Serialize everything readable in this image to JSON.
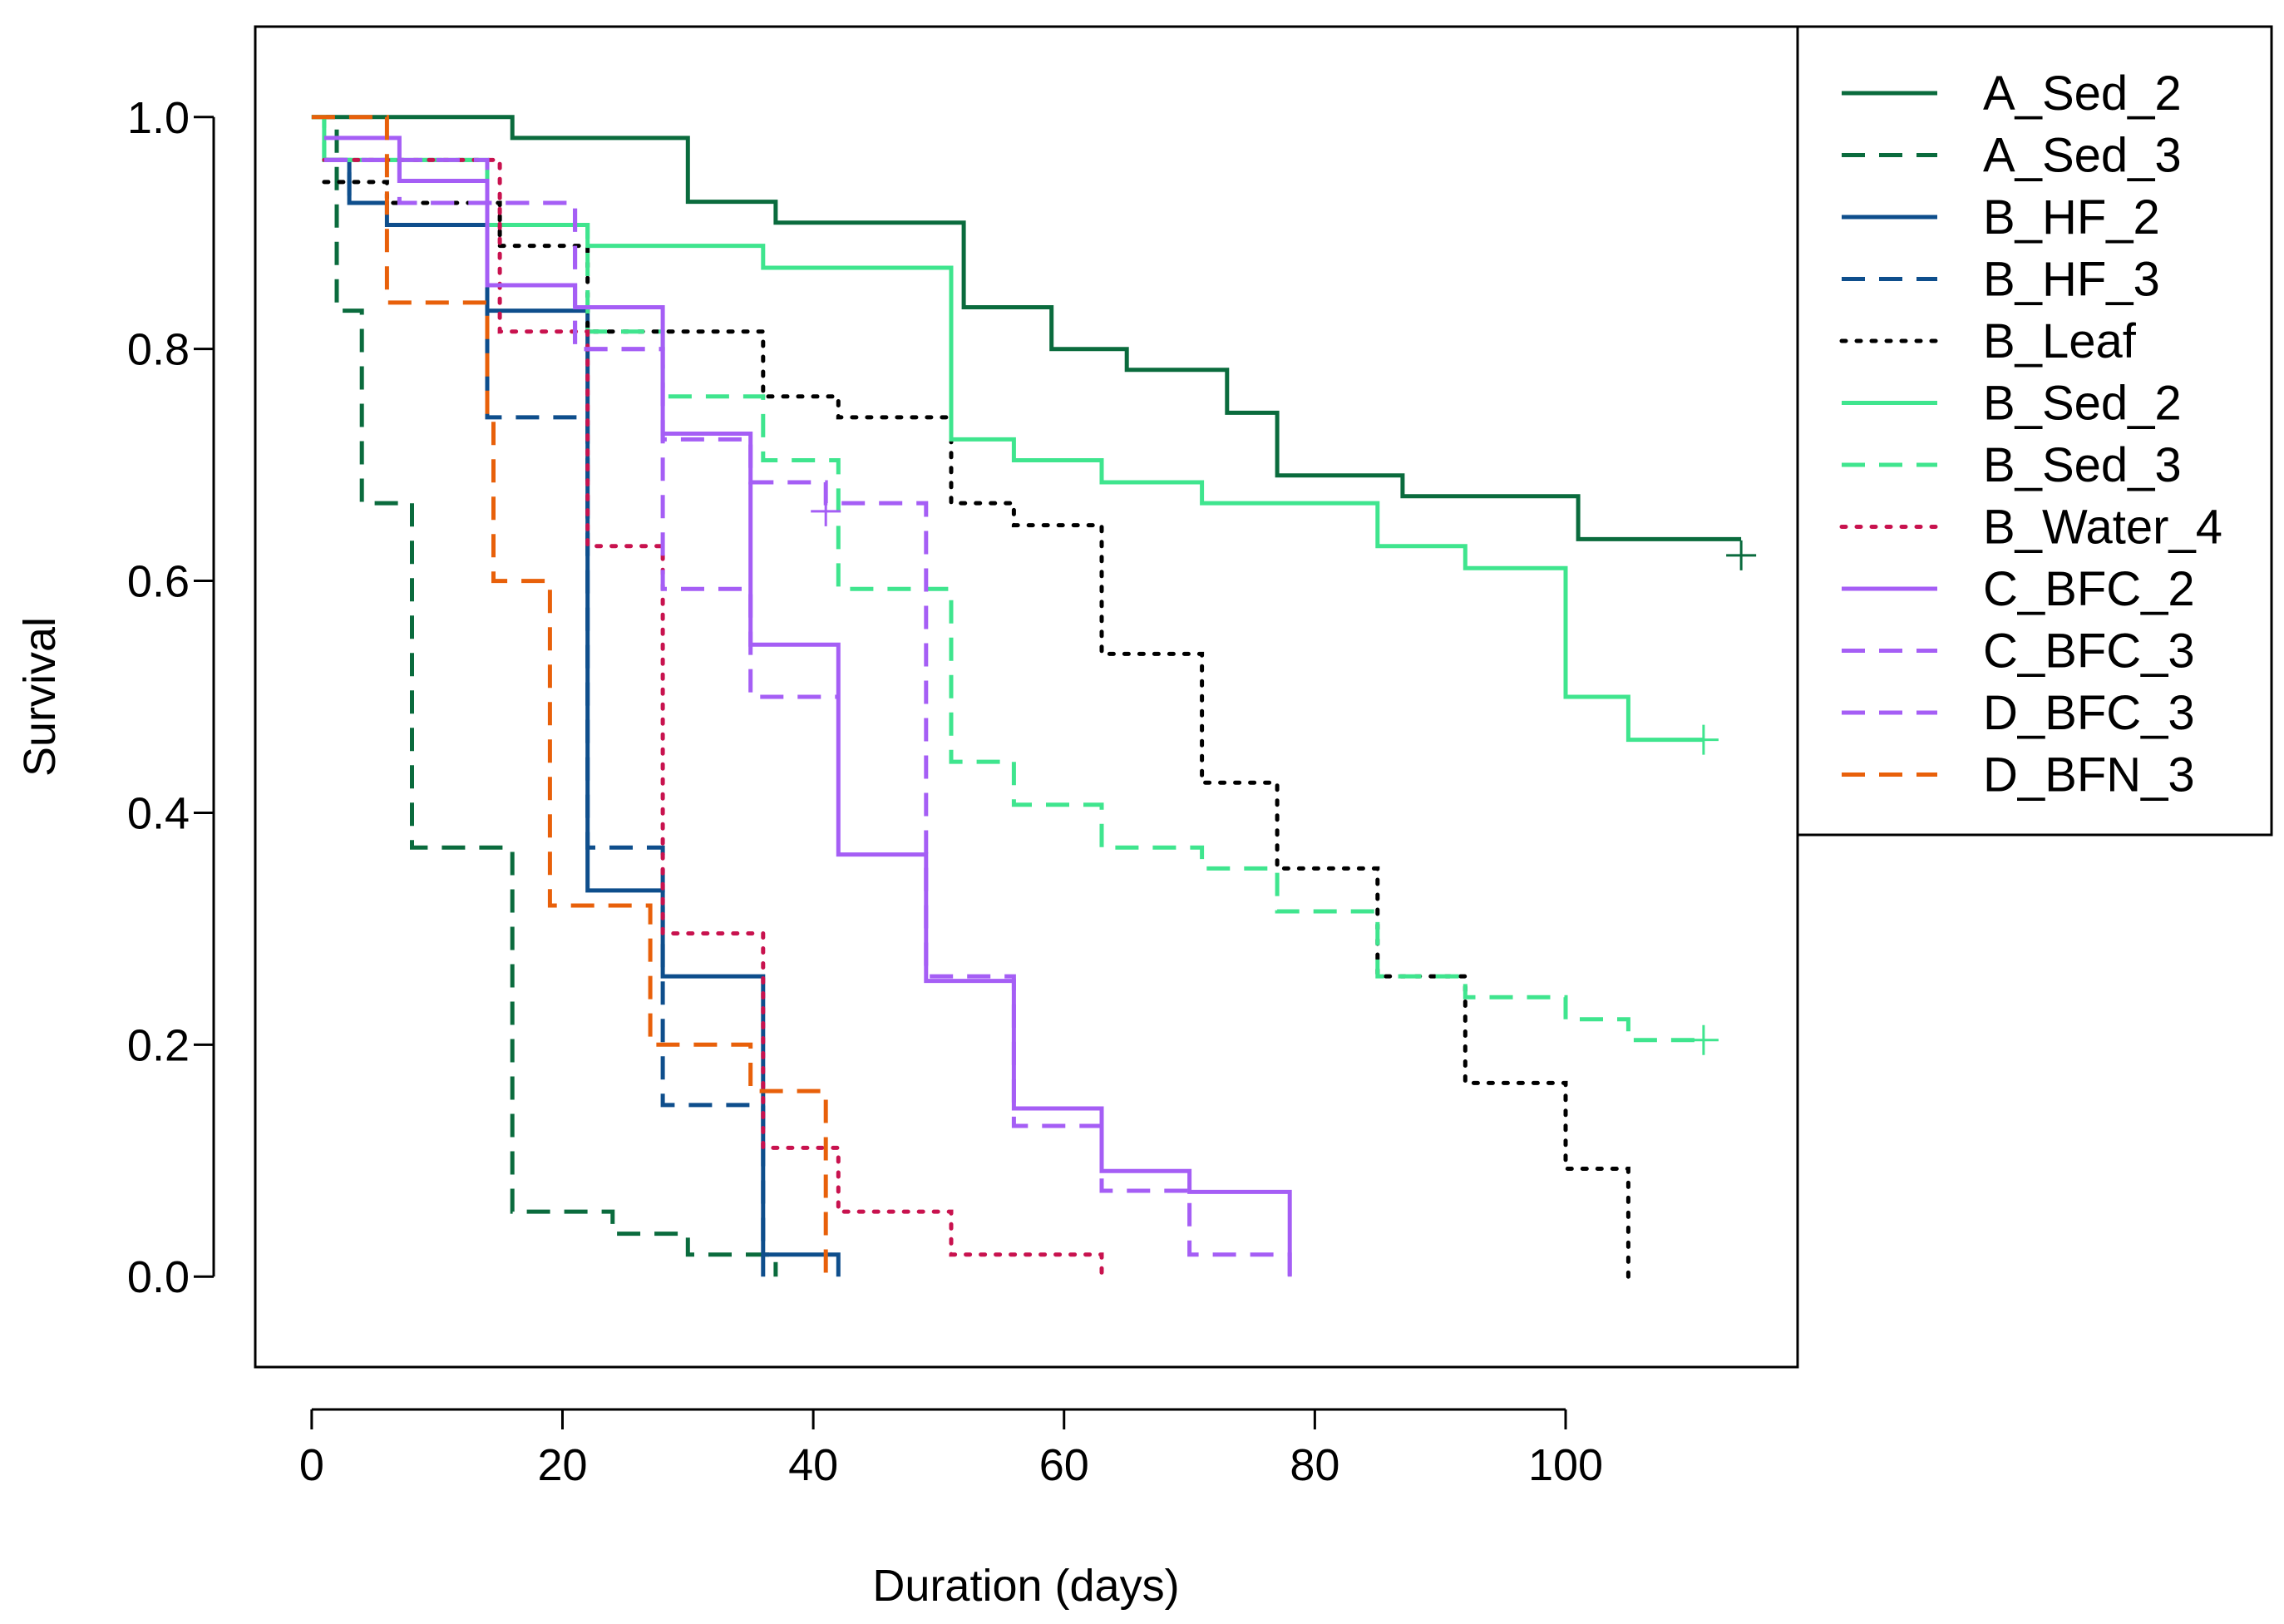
{
  "chart_data": {
    "type": "line",
    "subtype": "step",
    "xlabel": "Duration (days)",
    "ylabel": "Survival",
    "xlim": [
      -4.5,
      118.5
    ],
    "ylim": [
      -0.078,
      1.078
    ],
    "x_ticks": [
      0,
      20,
      40,
      60,
      80,
      100
    ],
    "y_ticks": [
      0.0,
      0.2,
      0.4,
      0.6,
      0.8,
      1.0
    ],
    "x_tick_labels": [
      "0",
      "20",
      "40",
      "60",
      "80",
      "100"
    ],
    "y_tick_labels": [
      "0.0",
      "0.2",
      "0.4",
      "0.6",
      "0.8",
      "1.0"
    ],
    "grid": false,
    "legend_position": "top-right",
    "series": [
      {
        "name": "A_Sed_2",
        "color": "#0a6b3d",
        "dash": "solid",
        "points": [
          [
            0,
            1.0
          ],
          [
            16,
            0.982
          ],
          [
            30,
            0.927
          ],
          [
            37,
            0.909
          ],
          [
            52,
            0.836
          ],
          [
            59,
            0.8
          ],
          [
            65,
            0.782
          ],
          [
            73,
            0.745
          ],
          [
            77,
            0.691
          ],
          [
            87,
            0.673
          ],
          [
            101,
            0.636
          ],
          [
            114,
            0.636
          ]
        ],
        "censor": [
          [
            114,
            0.622
          ]
        ]
      },
      {
        "name": "A_Sed_3",
        "color": "#0a6b3d",
        "dash": "dashed",
        "points": [
          [
            0,
            1.0
          ],
          [
            2,
            0.833
          ],
          [
            4,
            0.667
          ],
          [
            8,
            0.37
          ],
          [
            16,
            0.056
          ],
          [
            24,
            0.037
          ],
          [
            30,
            0.019
          ],
          [
            37,
            0.0
          ]
        ],
        "censor": []
      },
      {
        "name": "B_HF_2",
        "color": "#0e4e8c",
        "dash": "solid",
        "points": [
          [
            1,
            0.963
          ],
          [
            3,
            0.926
          ],
          [
            6,
            0.907
          ],
          [
            14,
            0.833
          ],
          [
            22,
            0.333
          ],
          [
            28,
            0.259
          ],
          [
            36,
            0.019
          ],
          [
            42,
            0.0
          ]
        ],
        "censor": []
      },
      {
        "name": "B_HF_3",
        "color": "#0e4e8c",
        "dash": "dashed",
        "points": [
          [
            1,
            0.963
          ],
          [
            3,
            0.926
          ],
          [
            14,
            0.741
          ],
          [
            22,
            0.37
          ],
          [
            28,
            0.148
          ],
          [
            36,
            0.0
          ]
        ],
        "censor": []
      },
      {
        "name": "B_Leaf",
        "color": "#000000",
        "dash": "dotted",
        "points": [
          [
            1,
            0.944
          ],
          [
            6,
            0.926
          ],
          [
            15,
            0.889
          ],
          [
            22,
            0.815
          ],
          [
            36,
            0.759
          ],
          [
            42,
            0.741
          ],
          [
            51,
            0.667
          ],
          [
            56,
            0.648
          ],
          [
            63,
            0.537
          ],
          [
            71,
            0.426
          ],
          [
            77,
            0.352
          ],
          [
            85,
            0.259
          ],
          [
            92,
            0.167
          ],
          [
            100,
            0.093
          ],
          [
            105,
            0.0
          ]
        ],
        "censor": []
      },
      {
        "name": "B_Sed_2",
        "color": "#3fe58e",
        "dash": "solid",
        "points": [
          [
            0,
            1.0
          ],
          [
            1,
            0.963
          ],
          [
            14,
            0.907
          ],
          [
            22,
            0.889
          ],
          [
            36,
            0.87
          ],
          [
            51,
            0.722
          ],
          [
            56,
            0.704
          ],
          [
            63,
            0.685
          ],
          [
            71,
            0.667
          ],
          [
            85,
            0.63
          ],
          [
            92,
            0.611
          ],
          [
            100,
            0.5
          ],
          [
            105,
            0.463
          ],
          [
            111,
            0.463
          ]
        ],
        "censor": [
          [
            111,
            0.463
          ]
        ]
      },
      {
        "name": "B_Sed_3",
        "color": "#3fe58e",
        "dash": "dashed",
        "points": [
          [
            0,
            1.0
          ],
          [
            1,
            0.963
          ],
          [
            14,
            0.907
          ],
          [
            22,
            0.815
          ],
          [
            28,
            0.759
          ],
          [
            36,
            0.704
          ],
          [
            42,
            0.593
          ],
          [
            51,
            0.444
          ],
          [
            56,
            0.407
          ],
          [
            63,
            0.37
          ],
          [
            71,
            0.352
          ],
          [
            77,
            0.315
          ],
          [
            85,
            0.259
          ],
          [
            92,
            0.241
          ],
          [
            100,
            0.222
          ],
          [
            105,
            0.204
          ],
          [
            111,
            0.204
          ]
        ],
        "censor": [
          [
            111,
            0.204
          ]
        ]
      },
      {
        "name": "B_Water_4",
        "color": "#c8124e",
        "dash": "dotted",
        "points": [
          [
            1,
            0.963
          ],
          [
            15,
            0.815
          ],
          [
            22,
            0.63
          ],
          [
            28,
            0.296
          ],
          [
            36,
            0.111
          ],
          [
            42,
            0.056
          ],
          [
            51,
            0.019
          ],
          [
            63,
            0.0
          ]
        ],
        "censor": []
      },
      {
        "name": "C_BFC_2",
        "color": "#a55ef5",
        "dash": "solid",
        "points": [
          [
            1,
            0.982
          ],
          [
            7,
            0.945
          ],
          [
            14,
            0.855
          ],
          [
            21,
            0.836
          ],
          [
            28,
            0.727
          ],
          [
            35,
            0.545
          ],
          [
            42,
            0.364
          ],
          [
            49,
            0.255
          ],
          [
            56,
            0.145
          ],
          [
            63,
            0.091
          ],
          [
            70,
            0.073
          ],
          [
            78,
            0.0
          ]
        ],
        "censor": []
      },
      {
        "name": "C_BFC_3",
        "color": "#a55ef5",
        "dash": "dashed",
        "points": [
          [
            1,
            0.963
          ],
          [
            7,
            0.926
          ],
          [
            21,
            0.8
          ],
          [
            28,
            0.593
          ],
          [
            35,
            0.5
          ],
          [
            42,
            0.5
          ]
        ],
        "censor": []
      },
      {
        "name": "D_BFC_3",
        "color": "#a55ef5",
        "dash": "dashed",
        "points": [
          [
            1,
            0.963
          ],
          [
            14,
            0.926
          ],
          [
            21,
            0.8
          ],
          [
            28,
            0.722
          ],
          [
            35,
            0.685
          ],
          [
            41,
            0.667
          ],
          [
            49,
            0.259
          ],
          [
            56,
            0.13
          ],
          [
            63,
            0.074
          ],
          [
            70,
            0.019
          ],
          [
            78,
            0.0
          ]
        ],
        "censor": [
          [
            41,
            0.66
          ]
        ]
      },
      {
        "name": "D_BFN_3",
        "color": "#e8600a",
        "dash": "dashed",
        "points": [
          [
            0,
            1.0
          ],
          [
            6,
            0.84
          ],
          [
            14,
            0.74
          ],
          [
            14.5,
            0.6
          ],
          [
            19,
            0.32
          ],
          [
            27,
            0.2
          ],
          [
            35,
            0.16
          ],
          [
            41,
            0.0
          ]
        ],
        "censor": []
      }
    ]
  }
}
